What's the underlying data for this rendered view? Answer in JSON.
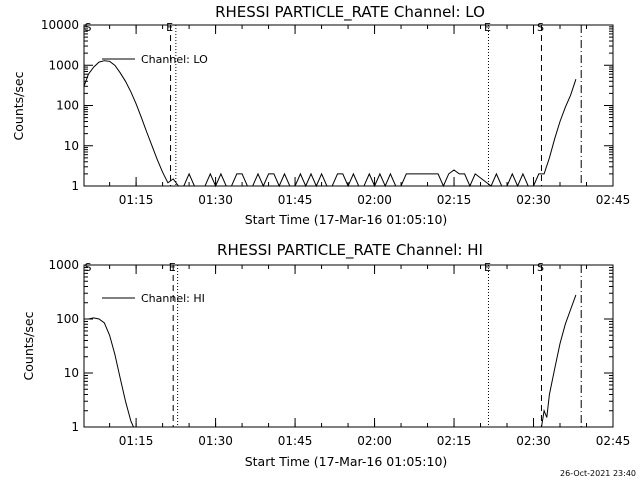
{
  "chart_data": [
    {
      "type": "line",
      "title": "RHESSI PARTICLE_RATE Channel: LO",
      "xlabel": "Start Time (17-Mar-16 01:05:10)",
      "ylabel": "Counts/sec",
      "y_scale": "log",
      "ylim": [
        1,
        10000
      ],
      "y_ticks": [
        {
          "value": 1,
          "label": "1"
        },
        {
          "value": 10,
          "label": "10"
        },
        {
          "value": 100,
          "label": "100"
        },
        {
          "value": 1000,
          "label": "1000"
        },
        {
          "value": 10000,
          "label": "10000"
        }
      ],
      "xlim": [
        "01:05:10",
        "02:45:00"
      ],
      "x_ticks": [
        "01:15",
        "01:30",
        "01:45",
        "02:00",
        "02:15",
        "02:30",
        "02:45"
      ],
      "legend": {
        "label": "Channel: LO",
        "placement": "top-left"
      },
      "series": [
        {
          "name": "Channel: LO",
          "x": [
            "01:05:10",
            "01:06:00",
            "01:07:00",
            "01:08:00",
            "01:09:00",
            "01:10:00",
            "01:11:00",
            "01:12:00",
            "01:13:00",
            "01:14:00",
            "01:15:00",
            "01:16:00",
            "01:17:00",
            "01:18:00",
            "01:19:00",
            "01:20:00",
            "01:21:00",
            "01:22:00",
            "01:23:00",
            "01:24:00",
            "01:25:00",
            "01:26:00",
            "01:27:00",
            "01:28:00",
            "01:29:00",
            "01:30:00",
            "01:31:00",
            "01:32:00",
            "01:33:00",
            "01:34:00",
            "01:35:00",
            "01:36:00",
            "01:37:00",
            "01:38:00",
            "01:39:00",
            "01:40:00",
            "01:41:00",
            "01:42:00",
            "01:43:00",
            "01:44:00",
            "01:45:00",
            "01:46:00",
            "01:47:00",
            "01:48:00",
            "01:49:00",
            "01:50:00",
            "01:51:00",
            "01:52:00",
            "01:53:00",
            "01:54:00",
            "01:55:00",
            "01:56:00",
            "01:57:00",
            "01:58:00",
            "01:59:00",
            "02:00:00",
            "02:01:00",
            "02:02:00",
            "02:03:00",
            "02:04:00",
            "02:05:00",
            "02:06:00",
            "02:07:00",
            "02:08:00",
            "02:09:00",
            "02:10:00",
            "02:11:00",
            "02:12:00",
            "02:13:00",
            "02:14:00",
            "02:15:00",
            "02:16:00",
            "02:17:00",
            "02:18:00",
            "02:19:00",
            "02:22:00",
            "02:23:00",
            "02:24:00",
            "02:25:00",
            "02:26:00",
            "02:27:00",
            "02:28:00",
            "02:29:00",
            "02:30:00",
            "02:31:00",
            "02:32:00",
            "02:33:00",
            "02:34:00",
            "02:35:00",
            "02:36:00",
            "02:37:00",
            "02:38:00"
          ],
          "y": [
            300,
            600,
            900,
            1200,
            1300,
            1250,
            1000,
            650,
            400,
            220,
            110,
            50,
            22,
            10,
            4.5,
            2.2,
            1.2,
            1.5,
            1,
            1,
            2,
            1,
            1,
            1,
            2,
            1,
            2,
            1,
            1,
            2,
            2,
            1,
            1,
            2,
            1,
            2,
            2,
            1,
            2,
            1,
            1,
            2,
            1,
            2,
            1,
            2,
            1,
            1,
            2,
            2,
            1,
            2,
            1,
            1,
            2,
            1,
            2,
            1,
            2,
            1,
            1,
            2,
            2,
            2,
            2,
            2,
            2,
            2,
            1,
            2,
            2.5,
            2,
            2,
            1,
            2,
            1,
            2,
            1,
            1,
            2,
            1,
            2,
            1,
            1,
            2,
            2,
            5,
            15,
            40,
            90,
            180,
            450
          ]
        }
      ],
      "vlines": [
        {
          "x": "01:21:30",
          "style": "dashed",
          "marker": "E"
        },
        {
          "x": "01:22:30",
          "style": "dotted",
          "marker": ""
        },
        {
          "x": "02:21:30",
          "style": "dotted",
          "marker": "E"
        },
        {
          "x": "02:31:30",
          "style": "dashed",
          "marker": "S"
        },
        {
          "x": "02:39:00",
          "style": "dash-dot",
          "marker": ""
        }
      ],
      "corner_marker": "S"
    },
    {
      "type": "line",
      "title": "RHESSI PARTICLE_RATE Channel: HI",
      "xlabel": "Start Time (17-Mar-16 01:05:10)",
      "ylabel": "Counts/sec",
      "y_scale": "log",
      "ylim": [
        1,
        1000
      ],
      "y_ticks": [
        {
          "value": 1,
          "label": "1"
        },
        {
          "value": 10,
          "label": "10"
        },
        {
          "value": 100,
          "label": "100"
        },
        {
          "value": 1000,
          "label": "1000"
        }
      ],
      "xlim": [
        "01:05:10",
        "02:45:00"
      ],
      "x_ticks": [
        "01:15",
        "01:30",
        "01:45",
        "02:00",
        "02:15",
        "02:30",
        "02:45"
      ],
      "legend": {
        "label": "Channel: HI",
        "placement": "top-left"
      },
      "series": [
        {
          "name": "Channel: HI",
          "x": [
            "01:05:10",
            "01:06:00",
            "01:07:00",
            "01:08:00",
            "01:09:00",
            "01:10:00",
            "01:11:00",
            "01:12:00",
            "01:13:00",
            "01:14:00",
            "01:14:30",
            "02:31:30",
            "02:32:00",
            "02:32:30",
            "02:33:00",
            "02:34:00",
            "02:35:00",
            "02:36:00",
            "02:37:00",
            "02:38:00"
          ],
          "y": [
            100,
            100,
            105,
            100,
            85,
            50,
            22,
            8,
            3,
            1.3,
            1,
            1,
            2,
            1.5,
            4,
            12,
            35,
            80,
            150,
            280
          ]
        }
      ],
      "vlines": [
        {
          "x": "01:22:00",
          "style": "dashed",
          "marker": "E"
        },
        {
          "x": "01:22:50",
          "style": "dotted",
          "marker": ""
        },
        {
          "x": "02:21:30",
          "style": "dotted",
          "marker": "E"
        },
        {
          "x": "02:31:30",
          "style": "dashed",
          "marker": "S"
        },
        {
          "x": "02:39:00",
          "style": "dash-dot",
          "marker": ""
        }
      ],
      "corner_marker": "S"
    }
  ],
  "footer": {
    "timestamp": "26-Oct-2021 23:40"
  }
}
